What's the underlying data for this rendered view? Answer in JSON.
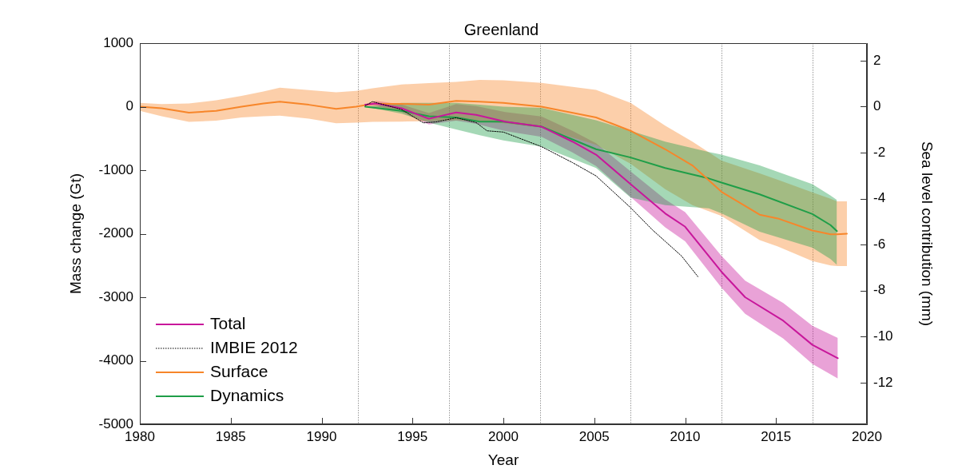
{
  "chart_data": {
    "type": "line",
    "title": "Greenland",
    "xlabel": "Year",
    "ylabel": "Mass change (Gt)",
    "y2label": "Sea level contribution (mm)",
    "xlim": [
      1980,
      2020
    ],
    "xticks": [
      1980,
      1985,
      1990,
      1995,
      2000,
      2005,
      2010,
      2015,
      2020
    ],
    "ylim": [
      -5000,
      1000
    ],
    "yticks": [
      -5000,
      -4000,
      -3000,
      -2000,
      -1000,
      0,
      1000
    ],
    "y2lim": [
      -13.81,
      2.76
    ],
    "y2ticks": [
      -12,
      -10,
      -8,
      -6,
      -4,
      -2,
      0,
      2
    ],
    "legend": "bottom left",
    "grid": false,
    "ref_lines": [
      {
        "axis": "x",
        "value": 1992,
        "color": "#999999",
        "line_style": "dotted"
      },
      {
        "axis": "x",
        "value": 1997,
        "color": "#999999",
        "line_style": "dotted"
      },
      {
        "axis": "x",
        "value": 2002,
        "color": "#999999",
        "line_style": "dotted"
      },
      {
        "axis": "x",
        "value": 2007,
        "color": "#999999",
        "line_style": "dotted"
      },
      {
        "axis": "x",
        "value": 2012,
        "color": "#999999",
        "line_style": "dotted"
      },
      {
        "axis": "x",
        "value": 2017,
        "color": "#999999",
        "line_style": "dotted"
      }
    ],
    "series": [
      {
        "name": "Total",
        "color": "#c8179b",
        "x": [
          1992.4,
          1993,
          1994.4,
          1995.9,
          1997.4,
          1998.5,
          2000.1,
          2002.1,
          2003.8,
          2005.1,
          2007,
          2008.9,
          2010,
          2012,
          2013.3,
          2015.4,
          2017,
          2018.4
        ],
        "values": [
          30,
          50,
          -25,
          -190,
          -90,
          -130,
          -235,
          -315,
          -550,
          -755,
          -1220,
          -1680,
          -1890,
          -2600,
          -3000,
          -3370,
          -3750,
          -3960
        ],
        "upper": [
          30,
          90,
          35,
          -100,
          40,
          10,
          -85,
          -155,
          -380,
          -575,
          -1020,
          -1460,
          -1660,
          -2350,
          -2740,
          -3090,
          -3450,
          -3640
        ],
        "lower": [
          30,
          10,
          -85,
          -280,
          -220,
          -270,
          -385,
          -475,
          -720,
          -935,
          -1420,
          -1900,
          -2120,
          -2850,
          -3260,
          -3650,
          -4050,
          -4280
        ]
      },
      {
        "name": "IMBIE 2012",
        "color": "#000000",
        "line_style": "dotted",
        "x": [
          1992.4,
          1992.8,
          1994.4,
          1995.6,
          1996.3,
          1997.4,
          1998.5,
          1999.1,
          2000,
          2002.1,
          2003.8,
          2005.1,
          2007,
          2008.2,
          2009.8,
          2010.7
        ],
        "values": [
          15,
          80,
          -45,
          -255,
          -240,
          -175,
          -250,
          -380,
          -400,
          -630,
          -880,
          -1090,
          -1590,
          -1940,
          -2350,
          -2675
        ]
      },
      {
        "name": "Surface",
        "color": "#f7862a",
        "x": [
          1980,
          1981.2,
          1982.7,
          1984.2,
          1985.6,
          1986.8,
          1987.7,
          1989.3,
          1990.8,
          1991.9,
          1992.8,
          1994.4,
          1995.9,
          1997.4,
          1998.7,
          2000,
          2002.1,
          2005.1,
          2007,
          2008.9,
          2010.4,
          2012,
          2014.1,
          2015.1,
          2017,
          2018,
          2018.35,
          2018.9
        ],
        "values": [
          0,
          -25,
          -95,
          -65,
          0,
          50,
          80,
          30,
          -35,
          0,
          45,
          45,
          30,
          90,
          80,
          60,
          0,
          -170,
          -380,
          -670,
          -925,
          -1340,
          -1700,
          -1760,
          -1950,
          -2010,
          -2010,
          -2000
        ],
        "upper": [
          60,
          40,
          50,
          100,
          170,
          240,
          300,
          260,
          225,
          250,
          290,
          350,
          370,
          390,
          420,
          415,
          375,
          265,
          60,
          -300,
          -550,
          -850,
          -1050,
          -1150,
          -1350,
          -1450,
          -1490,
          -1490
        ],
        "lower": [
          -65,
          -150,
          -240,
          -220,
          -170,
          -150,
          -140,
          -190,
          -260,
          -250,
          -240,
          -235,
          -230,
          -215,
          -230,
          -260,
          -330,
          -600,
          -900,
          -1300,
          -1550,
          -1720,
          -2100,
          -2200,
          -2430,
          -2500,
          -2510,
          -2510
        ]
      },
      {
        "name": "Dynamics",
        "color": "#1f9e48",
        "x": [
          1992.4,
          1994.4,
          1995.9,
          1997.4,
          1998.7,
          2000,
          2002.1,
          2005.1,
          2007,
          2008.9,
          2011.3,
          2012,
          2014.1,
          2017,
          2018,
          2018.35
        ],
        "values": [
          0,
          -65,
          -150,
          -170,
          -235,
          -235,
          -315,
          -670,
          -800,
          -965,
          -1130,
          -1195,
          -1380,
          -1690,
          -1865,
          -1960
        ],
        "upper": [
          0,
          60,
          60,
          60,
          30,
          0,
          -20,
          -215,
          -380,
          -550,
          -715,
          -755,
          -925,
          -1220,
          -1400,
          -1470
        ],
        "lower": [
          0,
          -110,
          -250,
          -360,
          -450,
          -530,
          -630,
          -965,
          -1430,
          -1550,
          -1600,
          -1680,
          -1970,
          -2220,
          -2400,
          -2490
        ]
      }
    ]
  }
}
